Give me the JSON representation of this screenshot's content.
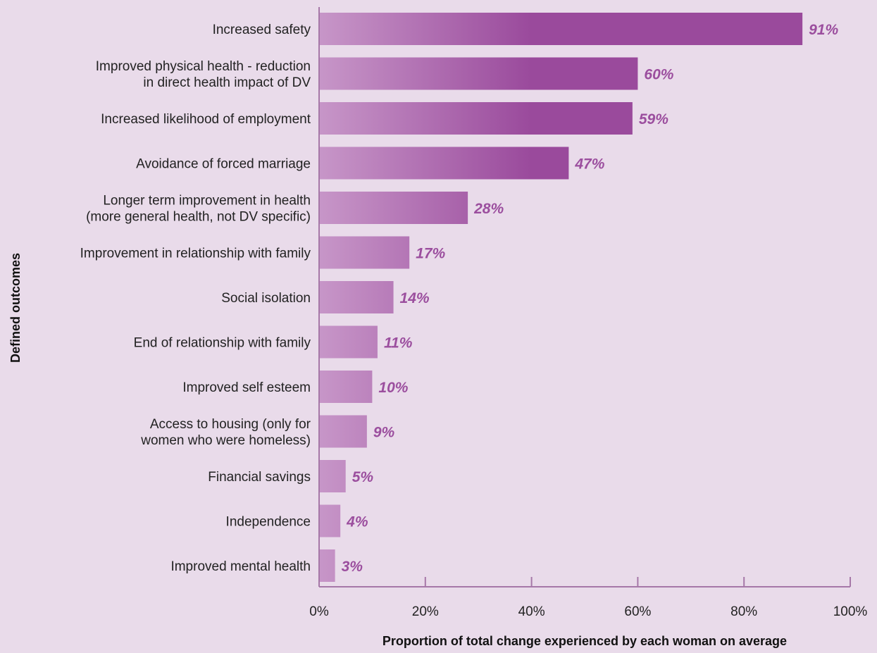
{
  "chart_data": {
    "type": "bar",
    "orientation": "horizontal",
    "categories": [
      [
        "Increased safety"
      ],
      [
        "Improved physical health - reduction",
        "in direct health impact of DV"
      ],
      [
        "Increased likelihood of employment"
      ],
      [
        "Avoidance of forced marriage"
      ],
      [
        "Longer term improvement in health",
        "(more general health, not DV specific)"
      ],
      [
        "Improvement in relationship with family"
      ],
      [
        "Social isolation"
      ],
      [
        "End of relationship with family"
      ],
      [
        "Improved self esteem"
      ],
      [
        "Access to housing (only for",
        "women who were homeless)"
      ],
      [
        "Financial savings"
      ],
      [
        "Independence"
      ],
      [
        "Improved mental health"
      ]
    ],
    "values": [
      91,
      60,
      59,
      47,
      28,
      17,
      14,
      11,
      10,
      9,
      5,
      4,
      3
    ],
    "data_labels": [
      "91%",
      "60%",
      "59%",
      "47%",
      "28%",
      "17%",
      "14%",
      "11%",
      "10%",
      "9%",
      "5%",
      "4%",
      "3%"
    ],
    "xlim": [
      0,
      100
    ],
    "xticks": [
      0,
      20,
      40,
      60,
      80,
      100
    ],
    "xtick_labels": [
      "0%",
      "20%",
      "40%",
      "60%",
      "80%",
      "100%"
    ],
    "xlabel": "Proportion of total change experienced by each woman on average",
    "ylabel": "Defined outcomes",
    "grid": false,
    "colors": {
      "background": "#e9dbea",
      "bar_start": "#c796c8",
      "bar_end": "#9a4a9c",
      "data_label": "#9b4e9e",
      "axis": "#a678a8",
      "text": "#222222"
    }
  }
}
